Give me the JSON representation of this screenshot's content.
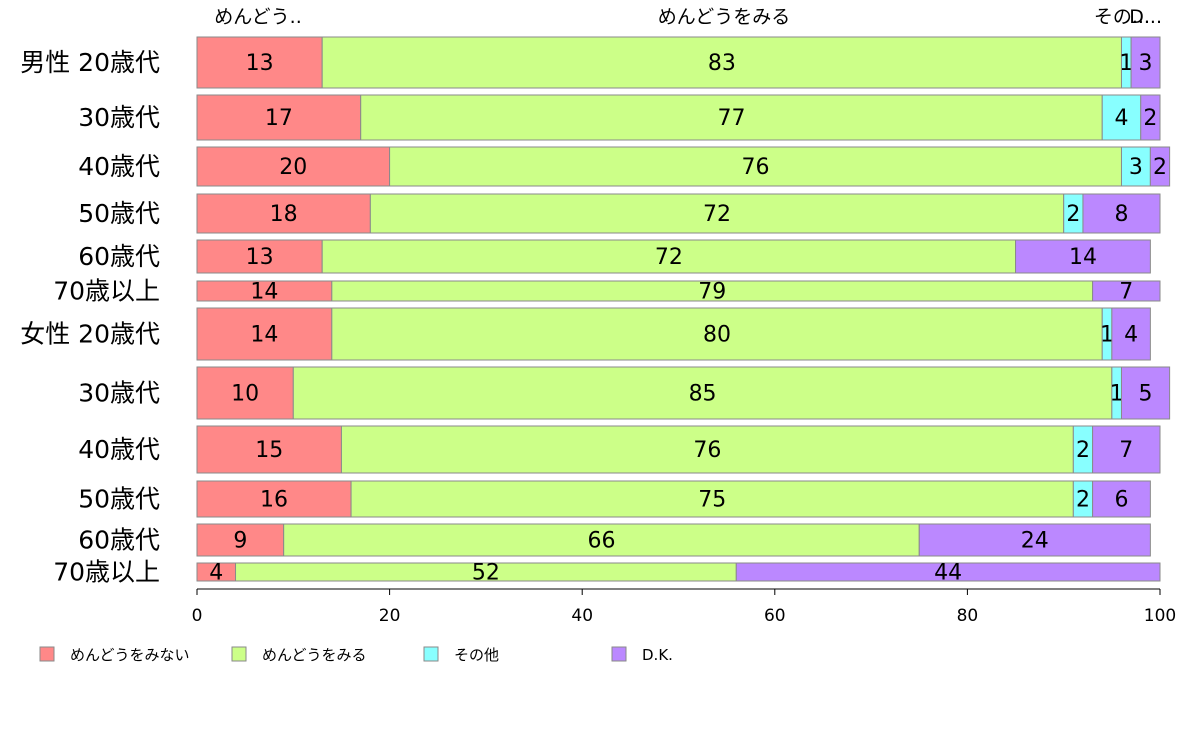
{
  "chart_data": {
    "type": "bar",
    "orientation": "horizontal",
    "stacked": true,
    "categories": [
      "男性 20歳代",
      "30歳代",
      "40歳代",
      "50歳代",
      "60歳代",
      "70歳以上",
      "女性 20歳代",
      "30歳代",
      "40歳代",
      "50歳代",
      "60歳代",
      "70歳以上"
    ],
    "series": [
      {
        "name": "めんどうをみない",
        "color": "#ff8888",
        "values": [
          13,
          17,
          20,
          18,
          13,
          14,
          14,
          10,
          15,
          16,
          9,
          4
        ]
      },
      {
        "name": "めんどうをみる",
        "color": "#ccff88",
        "values": [
          83,
          77,
          76,
          72,
          72,
          79,
          80,
          85,
          76,
          75,
          66,
          52
        ]
      },
      {
        "name": "その他",
        "color": "#88ffff",
        "values": [
          1,
          4,
          3,
          2,
          0,
          0,
          1,
          1,
          2,
          2,
          0,
          0
        ]
      },
      {
        "name": "D.K.",
        "color": "#bb88ff",
        "values": [
          3,
          2,
          2,
          8,
          14,
          7,
          4,
          5,
          7,
          6,
          24,
          44
        ]
      }
    ],
    "top_labels": [
      "めんどう..",
      "めんどうをみる",
      "その...",
      "D..."
    ],
    "xlim": [
      0,
      100
    ],
    "xticks": [
      "0",
      "20",
      "40",
      "60",
      "80",
      "100"
    ],
    "legend_position": "bottom-left",
    "grid": false
  }
}
